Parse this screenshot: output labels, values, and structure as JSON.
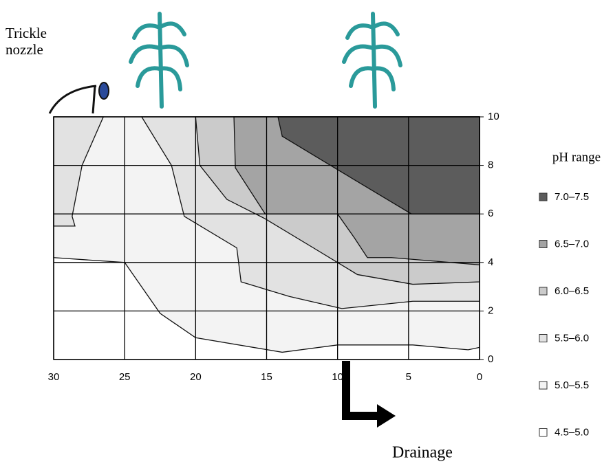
{
  "chart_data": {
    "type": "contour",
    "annotations": {
      "nozzle": "Trickle nozzle",
      "drainage": "Drainage"
    },
    "legend_title": "pH range",
    "xlim": [
      30,
      0
    ],
    "xticks": [
      30,
      25,
      20,
      15,
      10,
      5,
      0
    ],
    "ylim": [
      0,
      10
    ],
    "yticks": [
      0,
      2,
      4,
      6,
      8,
      10
    ],
    "grid": true,
    "series": [
      {
        "name": "7.0–7.5",
        "color": "#5c5c5c",
        "polygons": [
          {
            "x": [
              14.2,
              13.9,
              10.5,
              4.8,
              0,
              0
            ],
            "y": [
              10,
              9.2,
              8.0,
              6.0,
              6.0,
              10
            ]
          }
        ]
      },
      {
        "name": "6.5–7.0",
        "color": "#a4a4a4",
        "polygons": [
          {
            "x": [
              17.3,
              17.2,
              15.1,
              10.0,
              8.8,
              7.9,
              6.2,
              0,
              0
            ],
            "y": [
              10,
              7.9,
              6.0,
              6.0,
              5.0,
              4.2,
              4.2,
              3.9,
              10
            ]
          }
        ]
      },
      {
        "name": "6.0–6.5",
        "color": "#cbcbcb",
        "polygons": [
          {
            "x": [
              20.0,
              19.7,
              17.8,
              15.1,
              11.7,
              8.6,
              4.7,
              0,
              0
            ],
            "y": [
              10,
              8.0,
              6.6,
              5.8,
              4.6,
              3.5,
              3.1,
              3.2,
              10
            ]
          }
        ]
      },
      {
        "name": "5.5–6.0",
        "color": "#e2e2e2",
        "polygons": [
          {
            "x": [
              30,
              26.5,
              28.0,
              28.7,
              28.5,
              30
            ],
            "y": [
              10,
              10,
              8.0,
              5.9,
              5.5,
              5.5
            ]
          },
          {
            "x": [
              23.8,
              21.7,
              20.8,
              17.1,
              16.8,
              13.4,
              9.7,
              4.7,
              0,
              0
            ],
            "y": [
              10,
              8.0,
              5.9,
              4.6,
              3.2,
              2.6,
              2.1,
              2.4,
              2.4,
              10
            ]
          }
        ]
      },
      {
        "name": "5.0–5.5",
        "color": "#f3f3f3",
        "polygons": [
          {
            "x": [
              30,
              25,
              22.5,
              20,
              13.9,
              10,
              4.7,
              0.8,
              0,
              0,
              30
            ],
            "y": [
              4.2,
              4.0,
              1.9,
              0.9,
              0.3,
              0.6,
              0.6,
              0.4,
              0.5,
              10,
              10
            ]
          }
        ]
      },
      {
        "name": "4.5–5.0",
        "color": "#ffffff",
        "polygons": [
          {
            "x": [
              30,
              0,
              0,
              30
            ],
            "y": [
              0,
              0,
              10,
              10
            ]
          }
        ]
      }
    ]
  }
}
